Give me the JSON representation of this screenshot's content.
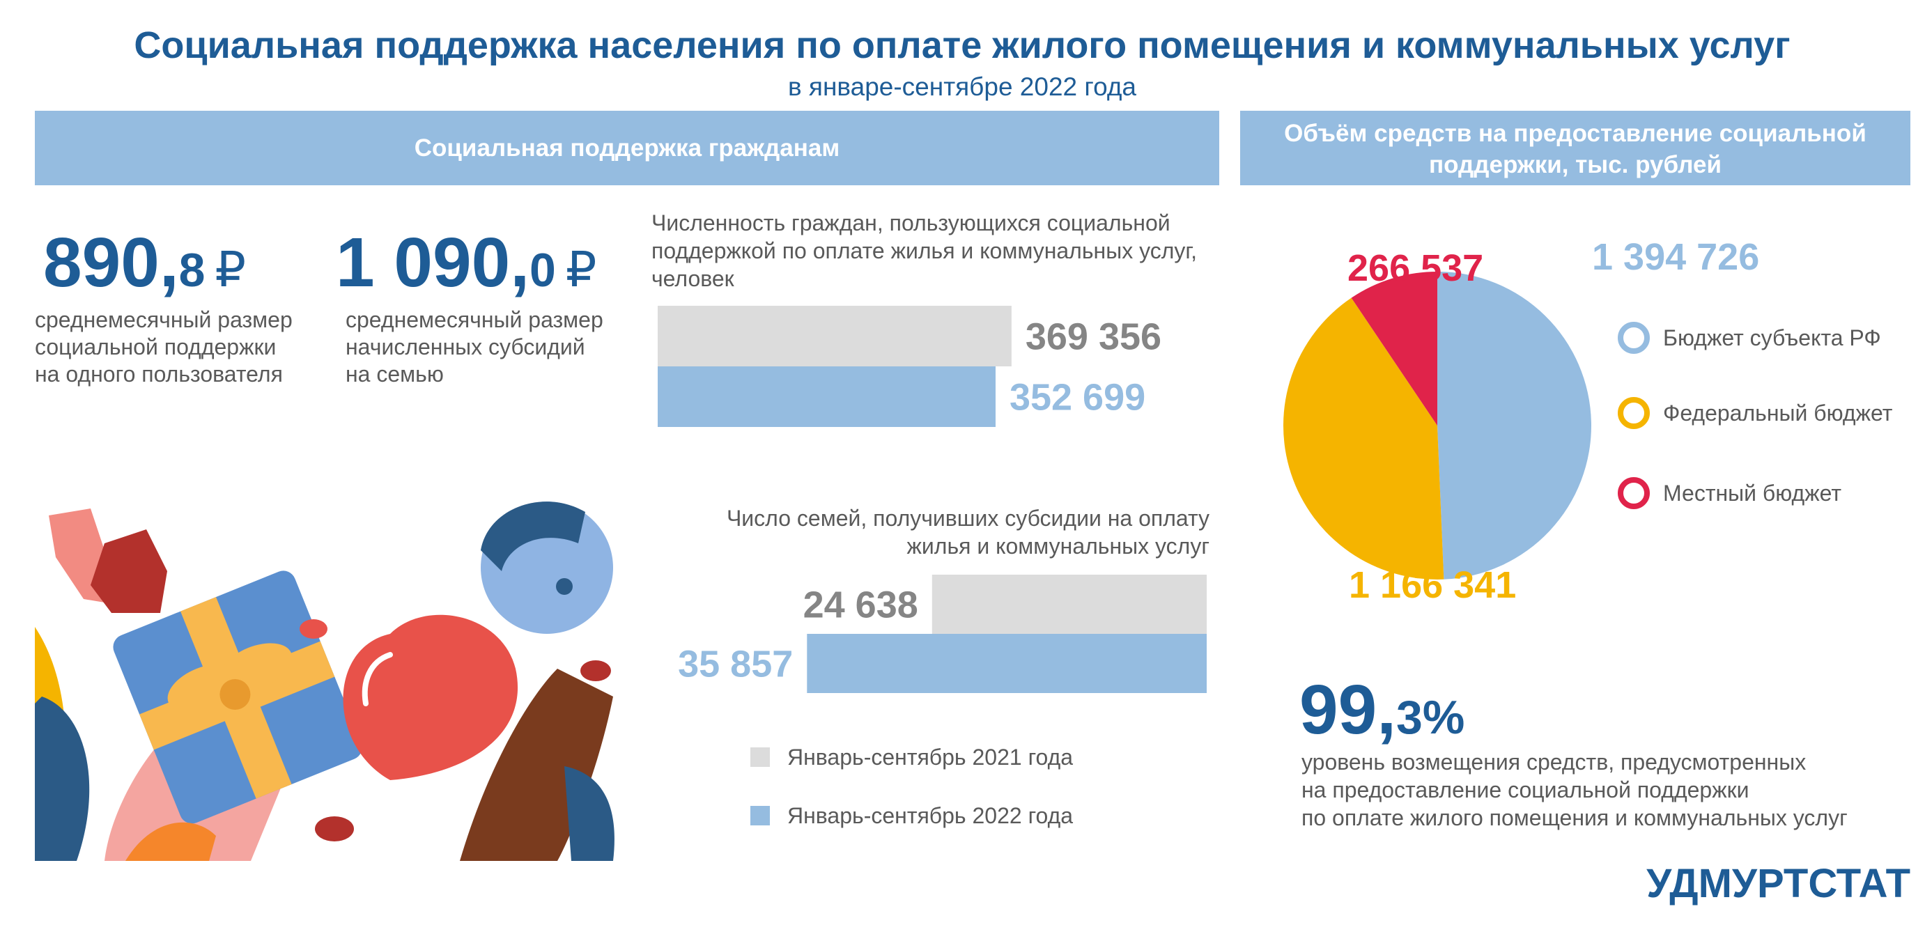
{
  "title": "Социальная  поддержка населения по оплате жилого помещения и коммунальных услуг",
  "subtitle": "в январе-сентябре 2022 года",
  "left_header": "Социальная поддержка гражданам",
  "right_header": [
    "Объём средств на предоставление социальной",
    "поддержки, тыс. рублей"
  ],
  "stats": [
    {
      "main": "890,",
      "fraction": "8",
      "unit": "₽",
      "caption": [
        "среднемесячный размер",
        "социальной поддержки",
        "на одного пользователя"
      ]
    },
    {
      "main": "1 090,",
      "fraction": "0",
      "unit": "₽",
      "caption": [
        "среднемесячный размер",
        "начисленных субсидий",
        "на семью"
      ]
    }
  ],
  "chart_data": [
    {
      "type": "bar",
      "orientation": "horizontal",
      "title": [
        "Численность граждан, пользующихся социальной",
        "поддержкой по оплате жилья и коммунальных услуг,",
        "человек"
      ],
      "xlim": [
        0,
        400000
      ],
      "series": [
        {
          "name": "Январь-сентябрь 2021 года",
          "color": "#dcdcdc",
          "label_color": "#858585",
          "values": [
            369356
          ],
          "value_labels": [
            "369 356"
          ]
        },
        {
          "name": "Январь-сентябрь 2022 года",
          "color": "#95bce0",
          "label_color": "#95bce0",
          "values": [
            352699
          ],
          "value_labels": [
            "352 699"
          ]
        }
      ]
    },
    {
      "type": "bar",
      "orientation": "horizontal",
      "direction": "left",
      "title": [
        "Число семей, получивших субсидии на оплату",
        "жилья и коммунальных услуг"
      ],
      "xlim": [
        0,
        45000
      ],
      "series": [
        {
          "color": "#dcdcdc",
          "label_color": "#858585",
          "values": [
            24638
          ],
          "value_labels": [
            "24 638"
          ]
        },
        {
          "color": "#95bce0",
          "label_color": "#95bce0",
          "values": [
            35857
          ],
          "value_labels": [
            "35 857"
          ]
        }
      ]
    },
    {
      "type": "pie",
      "categories": [
        "Бюджет субъекта РФ",
        "Федеральный бюджет",
        "Местный бюджет"
      ],
      "values": [
        1394726,
        1166341,
        266537
      ],
      "value_labels": [
        "1 394 726",
        "1 166 341",
        "266 537"
      ],
      "colors": [
        "#95bce0",
        "#f5b400",
        "#e0234a"
      ]
    }
  ],
  "coverage": {
    "main": "99,",
    "fraction": "3%",
    "caption": [
      "уровень возмещения средств, предусмотренных",
      "на предоставление социальной поддержки",
      "по оплате жилого помещения и коммунальных услуг"
    ]
  },
  "brand": "УДМУРТСТАТ"
}
